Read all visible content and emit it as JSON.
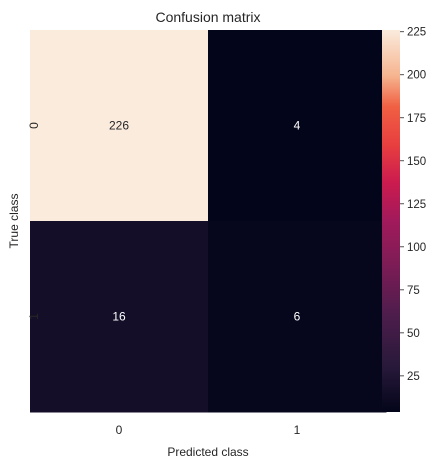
{
  "chart_data": {
    "type": "heatmap",
    "title": "Confusion matrix",
    "xlabel": "Predicted class",
    "ylabel": "True class",
    "x_categories": [
      "0",
      "1"
    ],
    "y_categories": [
      "0",
      "1"
    ],
    "values": [
      [
        226,
        4
      ],
      [
        16,
        6
      ]
    ],
    "colormap": "rocket",
    "colorbar": {
      "vmin": 4,
      "vmax": 226,
      "ticks": [
        25,
        50,
        75,
        100,
        125,
        150,
        175,
        200,
        225
      ]
    }
  }
}
